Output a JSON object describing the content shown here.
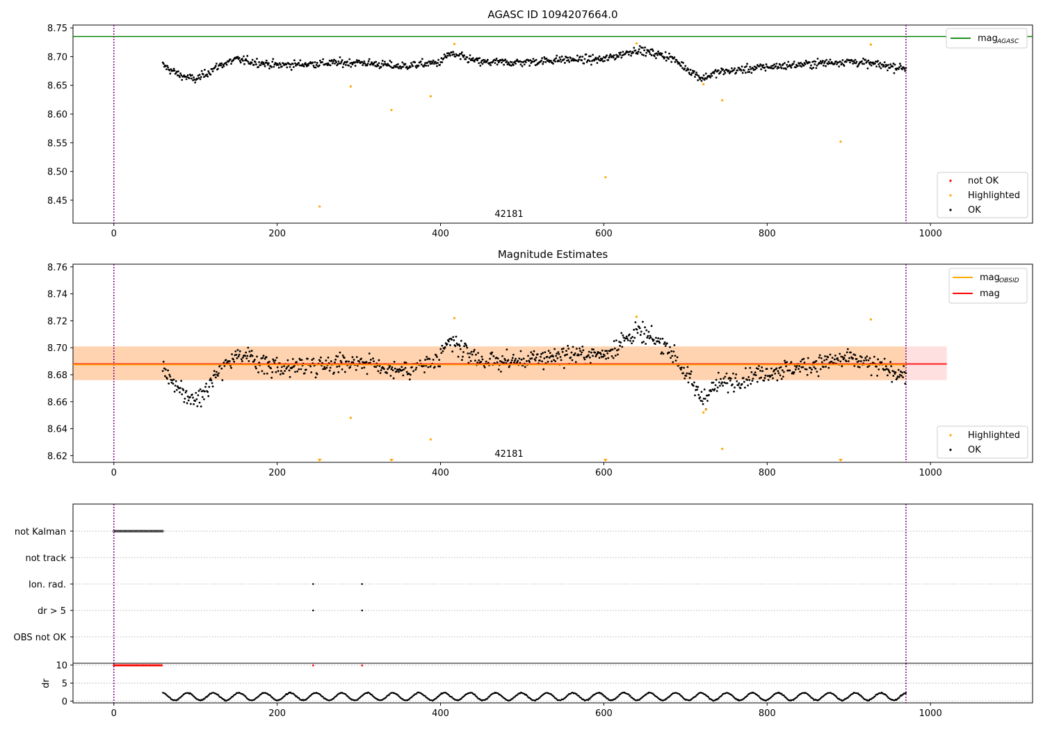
{
  "chart_data": [
    {
      "type": "scatter",
      "panel": "top",
      "title": "AGASC ID 1094207664.0",
      "annotation": "42181",
      "xlim": [
        -50,
        1125
      ],
      "ylim": [
        8.41,
        8.755
      ],
      "xticks": [
        0,
        200,
        400,
        600,
        800,
        1000
      ],
      "yticks": [
        8.45,
        8.5,
        8.55,
        8.6,
        8.65,
        8.7,
        8.75
      ],
      "ytick_labels": [
        "8.45",
        "8.50",
        "8.55",
        "8.60",
        "8.65",
        "8.70",
        "8.75"
      ],
      "vlines": [
        0,
        970
      ],
      "hline": {
        "label": "mag",
        "label_sub": "AGASC",
        "value": 8.735,
        "color": "#008000"
      },
      "legend_lines": [
        {
          "label": "mag",
          "sub": "AGASC",
          "color": "#008000"
        }
      ],
      "legend_points": [
        {
          "label": "not OK",
          "color": "#ff0000"
        },
        {
          "label": "Highlighted",
          "color": "#ffa500"
        },
        {
          "label": "OK",
          "color": "#000000"
        }
      ],
      "ok_profile": {
        "x_start": 60,
        "x_end": 970,
        "knots_x": [
          60,
          80,
          100,
          130,
          150,
          200,
          250,
          300,
          350,
          400,
          410,
          450,
          500,
          550,
          600,
          640,
          680,
          720,
          740,
          800,
          900,
          970
        ],
        "knots_y": [
          8.685,
          8.668,
          8.66,
          8.685,
          8.695,
          8.685,
          8.688,
          8.69,
          8.683,
          8.69,
          8.705,
          8.69,
          8.69,
          8.695,
          8.695,
          8.712,
          8.7,
          8.662,
          8.673,
          8.682,
          8.692,
          8.68
        ]
      },
      "highlighted_points": [
        {
          "x": 252,
          "y": 8.439
        },
        {
          "x": 290,
          "y": 8.648
        },
        {
          "x": 340,
          "y": 8.607
        },
        {
          "x": 388,
          "y": 8.631
        },
        {
          "x": 417,
          "y": 8.722
        },
        {
          "x": 602,
          "y": 8.49
        },
        {
          "x": 640,
          "y": 8.723
        },
        {
          "x": 722,
          "y": 8.652
        },
        {
          "x": 745,
          "y": 8.624
        },
        {
          "x": 890,
          "y": 8.552
        },
        {
          "x": 927,
          "y": 8.721
        }
      ]
    },
    {
      "type": "scatter",
      "panel": "middle",
      "title": "Magnitude Estimates",
      "annotation": "42181",
      "xlim": [
        -50,
        1125
      ],
      "ylim": [
        8.615,
        8.762
      ],
      "xticks": [
        0,
        200,
        400,
        600,
        800,
        1000
      ],
      "yticks": [
        8.62,
        8.64,
        8.66,
        8.68,
        8.7,
        8.72,
        8.74,
        8.76
      ],
      "ytick_labels": [
        "8.62",
        "8.64",
        "8.66",
        "8.68",
        "8.70",
        "8.72",
        "8.74",
        "8.76"
      ],
      "vlines": [
        0,
        970
      ],
      "mag_line": {
        "label": "mag",
        "value": 8.688,
        "color": "#ff0000",
        "band": [
          8.676,
          8.701
        ],
        "x_end": 1020
      },
      "mag_obsid_line": {
        "label": "mag",
        "label_sub": "OBSID",
        "value": 8.688,
        "color": "#ffa500",
        "band": [
          8.676,
          8.701
        ],
        "x_end": 970
      },
      "legend_lines": [
        {
          "label": "mag",
          "sub": "OBSID",
          "color": "#ffa500"
        },
        {
          "label": "mag",
          "sub": "",
          "color": "#ff0000"
        }
      ],
      "legend_points": [
        {
          "label": "Highlighted",
          "color": "#ffa500"
        },
        {
          "label": "OK",
          "color": "#000000"
        }
      ],
      "ok_profile": {
        "x_start": 60,
        "x_end": 970,
        "knots_x": [
          60,
          80,
          100,
          130,
          150,
          200,
          250,
          300,
          350,
          400,
          410,
          450,
          500,
          550,
          600,
          640,
          680,
          720,
          740,
          800,
          900,
          970
        ],
        "knots_y": [
          8.685,
          8.668,
          8.66,
          8.685,
          8.695,
          8.685,
          8.688,
          8.69,
          8.683,
          8.69,
          8.705,
          8.69,
          8.69,
          8.695,
          8.695,
          8.712,
          8.7,
          8.662,
          8.673,
          8.682,
          8.692,
          8.68
        ]
      },
      "highlighted_points": [
        {
          "x": 290,
          "y": 8.648
        },
        {
          "x": 388,
          "y": 8.632
        },
        {
          "x": 417,
          "y": 8.722
        },
        {
          "x": 640,
          "y": 8.723
        },
        {
          "x": 722,
          "y": 8.652
        },
        {
          "x": 725,
          "y": 8.654
        },
        {
          "x": 745,
          "y": 8.625
        },
        {
          "x": 927,
          "y": 8.721
        }
      ],
      "below_range_markers": [
        {
          "x": 252
        },
        {
          "x": 340
        },
        {
          "x": 602
        },
        {
          "x": 890
        }
      ]
    },
    {
      "type": "scatter",
      "panel": "flags",
      "xlim": [
        -50,
        1125
      ],
      "xticks": [
        0,
        200,
        400,
        600,
        800,
        1000
      ],
      "vlines": [
        0,
        970
      ],
      "categories": [
        "not Kalman",
        "not track",
        "Ion. rad.",
        "dr > 5",
        "OBS not OK"
      ],
      "flag_points": {
        "not Kalman": {
          "x_start": 0,
          "x_end": 60
        },
        "not track": {
          "x_start": null,
          "x_end": null
        },
        "Ion. rad.": {
          "xs": [
            244,
            304
          ]
        },
        "dr > 5": {
          "xs": [
            244,
            304
          ]
        },
        "OBS not OK": {
          "xs": []
        }
      }
    },
    {
      "type": "scatter",
      "panel": "dr",
      "ylabel": "dr",
      "xlim": [
        -50,
        1125
      ],
      "ylim": [
        -0.5,
        10.5
      ],
      "yticks": [
        0,
        5,
        10
      ],
      "ytick_labels": [
        "0",
        "5",
        "10"
      ],
      "xticks": [
        0,
        200,
        400,
        600,
        800,
        1000
      ],
      "xtick_labels": [
        "0",
        "200",
        "400",
        "600",
        "800",
        "1000"
      ],
      "vlines": [
        0,
        970
      ],
      "clipped": {
        "value": 10,
        "x_start": 0,
        "x_end": 60,
        "extra_xs": [
          244,
          304
        ],
        "color": "#ff0000"
      },
      "dr_profile": {
        "x_start": 60,
        "x_end": 970,
        "min": 0.1,
        "max": 2.4
      }
    }
  ]
}
